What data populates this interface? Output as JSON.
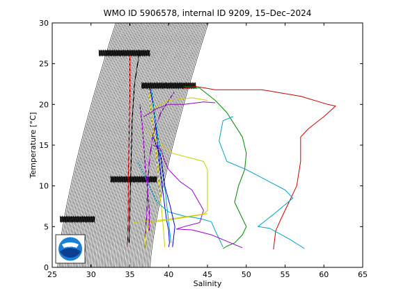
{
  "chart_data": {
    "type": "line",
    "title": "WMO ID 5906578, internal ID 9209, 15–Dec–2024",
    "xlabel": "Salinity",
    "ylabel": "Temperature [°C]",
    "xlim": [
      25,
      65
    ],
    "ylim": [
      0,
      30
    ],
    "xticks": [
      25,
      30,
      35,
      40,
      45,
      50,
      55,
      60,
      65
    ],
    "yticks": [
      0,
      5,
      10,
      15,
      20,
      25,
      30
    ],
    "xtick_labels": [
      "25",
      "30",
      "35",
      "40",
      "45",
      "50",
      "55",
      "60",
      "65"
    ],
    "ytick_labels": [
      "0",
      "5",
      "10",
      "15",
      "20",
      "25",
      "30"
    ],
    "grid": false,
    "density_band": {
      "x_bottom": [
        25.7,
        37.6
      ],
      "x_top": [
        33.2,
        45.1
      ]
    },
    "annotation_rows": [
      {
        "y": 26.3,
        "x": [
          31.0,
          37.6
        ]
      },
      {
        "y": 22.3,
        "x": [
          36.5,
          43.5
        ]
      },
      {
        "y": 10.8,
        "x": [
          32.5,
          38.5
        ]
      },
      {
        "y": 5.9,
        "x": [
          26.0,
          30.5
        ]
      }
    ],
    "series": [
      {
        "color": "#000000",
        "x": [
          36.2,
          35.6,
          35.3,
          35.2,
          35.1,
          35.0,
          34.9
        ],
        "y": [
          26.2,
          22.5,
          18,
          14,
          10.8,
          7,
          3.0
        ]
      },
      {
        "color": "#cc0000",
        "x": [
          35.0,
          35.0,
          34.9,
          34.8,
          34.8,
          34.7
        ],
        "y": [
          26.0,
          21.0,
          16.0,
          11.0,
          6.5,
          2.5
        ]
      },
      {
        "color": "#0000cc",
        "x": [
          37.6,
          38.0,
          38.5,
          38.9,
          39.3,
          39.7,
          40.0,
          40.1,
          40.0
        ],
        "y": [
          22.0,
          20.0,
          16.0,
          12.0,
          9.0,
          6.0,
          4.5,
          3.0,
          2.5
        ]
      },
      {
        "color": "#9900cc",
        "x": [
          40.7,
          39.0,
          38.0,
          37.5,
          37.3,
          37.2,
          37.0
        ],
        "y": [
          21.5,
          19.0,
          16.5,
          13.0,
          10.0,
          7.0,
          4.0
        ]
      },
      {
        "color": "#cccc00",
        "x": [
          37.4,
          37.8,
          38.3,
          38.6,
          38.9,
          39.3,
          39.5
        ],
        "y": [
          22.0,
          18.5,
          15.0,
          12.0,
          9.0,
          5.0,
          2.5
        ]
      },
      {
        "color": "#00a0c8",
        "x": [
          37.8,
          38.3,
          38.8,
          39.2,
          39.6,
          40.0,
          40.3
        ],
        "y": [
          21.8,
          18.0,
          15.0,
          12.0,
          9.0,
          5.5,
          3.0
        ]
      },
      {
        "color": "#cc0000",
        "x": [
          42.0,
          43.5,
          46.0,
          52.0,
          57.0,
          60.5,
          61.5,
          60.0,
          58.0,
          57.0,
          57.0,
          56.5,
          55.5,
          54.5,
          53.8,
          53.6,
          53.5
        ],
        "y": [
          22.0,
          22.2,
          21.8,
          21.8,
          21.0,
          20.0,
          19.8,
          18.5,
          17.0,
          16.0,
          13.0,
          10.0,
          8.0,
          6.0,
          4.5,
          3.0,
          2.2
        ]
      },
      {
        "color": "#008800",
        "x": [
          42.0,
          44.0,
          46.0,
          47.5,
          48.5,
          49.5,
          50.0,
          49.8,
          49.0,
          48.5,
          49.0,
          49.5,
          50.0,
          49.5,
          48.5,
          47.5,
          47.0
        ],
        "y": [
          22.2,
          22.0,
          20.5,
          19.0,
          17.5,
          16.0,
          14.0,
          12.0,
          10.0,
          8.0,
          7.0,
          6.0,
          5.0,
          4.0,
          3.0,
          2.6,
          2.3
        ]
      },
      {
        "color": "#00a0c8",
        "x": [
          48.3,
          47.0,
          46.5,
          47.5,
          50.0,
          53.0,
          55.0,
          56.0,
          53.5,
          51.5,
          53.0,
          55.5,
          57.5
        ],
        "y": [
          18.5,
          18.0,
          15.5,
          13.0,
          12.0,
          10.5,
          9.5,
          8.5,
          6.5,
          5.0,
          4.8,
          3.5,
          2.3
        ]
      },
      {
        "color": "#00a0c8",
        "x": [
          36.0,
          37.5,
          38.5,
          40.0,
          42.0,
          44.0,
          45.5,
          46.0,
          46.5,
          47.0
        ],
        "y": [
          13.0,
          10.0,
          8.0,
          6.8,
          6.3,
          6.0,
          5.6,
          4.5,
          3.5,
          2.5
        ]
      },
      {
        "color": "#9900cc",
        "x": [
          38.0,
          39.0,
          39.5,
          40.0,
          40.5,
          41.5,
          43.0,
          44.5,
          44.0,
          42.0,
          41.0,
          43.0,
          45.5,
          48.0,
          49.5
        ],
        "y": [
          15.0,
          14.5,
          13.0,
          12.0,
          11.5,
          10.5,
          9.5,
          7.0,
          5.5,
          5.0,
          4.7,
          4.6,
          4.0,
          3.0,
          2.4
        ]
      },
      {
        "color": "#9900cc",
        "x": [
          36.8,
          38.5,
          40.0,
          42.0,
          44.5,
          46.0
        ],
        "y": [
          18.5,
          19.5,
          20.0,
          20.0,
          20.3,
          20.2
        ]
      },
      {
        "color": "#cccc00",
        "x": [
          37.0,
          38.5,
          40.5,
          44.5,
          45.0,
          45.0,
          45.0,
          44.5,
          40.0,
          37.5,
          37.0,
          37.0
        ],
        "y": [
          17.0,
          15.5,
          14.0,
          13.0,
          12.0,
          10.0,
          7.0,
          6.5,
          5.8,
          5.5,
          4.0,
          2.3
        ]
      },
      {
        "color": "#cccc00",
        "x": [
          38.0,
          40.0,
          43.0,
          45.0
        ],
        "y": [
          19.5,
          20.5,
          20.8,
          20.5
        ]
      },
      {
        "color": "#cccc00",
        "x": [
          35.5,
          39.0,
          42.0,
          45.0
        ],
        "y": [
          5.5,
          5.8,
          6.2,
          6.6
        ]
      },
      {
        "color": "#0000cc",
        "x": [
          38.0,
          39.0,
          39.5,
          40.2,
          40.8,
          40.5
        ],
        "y": [
          16.0,
          13.5,
          10.0,
          7.5,
          5.0,
          2.5
        ]
      },
      {
        "color": "#9900cc",
        "x": [
          36.3,
          36.6,
          36.8,
          37.0,
          37.3,
          37.5,
          37.5
        ],
        "y": [
          20.0,
          17.5,
          15.0,
          12.0,
          9.5,
          7.0,
          4.5
        ]
      }
    ],
    "logo": {
      "label": "NOAA"
    }
  }
}
